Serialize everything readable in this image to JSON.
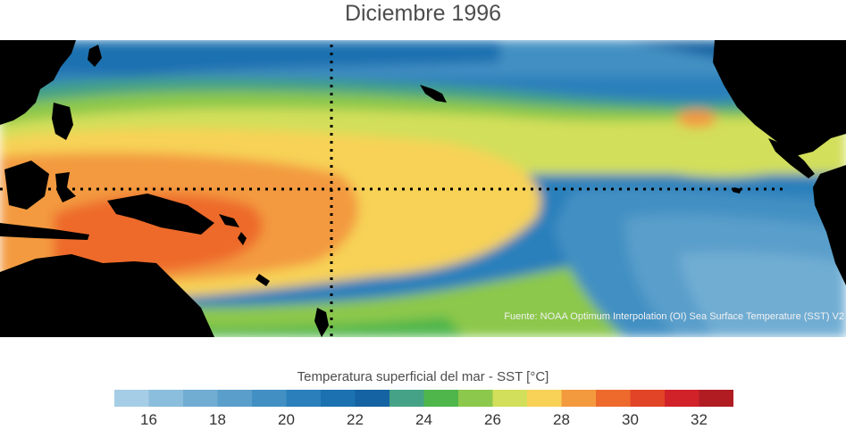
{
  "title": "Diciembre 1996",
  "credit": "Fuente: NOAA Optimum Interpolation (OI) Sea Surface Temperature (SST) V2",
  "colorbar": {
    "title": "Temperatura superficial del mar - SST  [°C]",
    "unit": "°C",
    "bins": [
      {
        "from": 15,
        "to": 16,
        "color": "#a6cde6"
      },
      {
        "from": 16,
        "to": 17,
        "color": "#8bbddc"
      },
      {
        "from": 17,
        "to": 18,
        "color": "#71add3"
      },
      {
        "from": 18,
        "to": 19,
        "color": "#5a9fcb"
      },
      {
        "from": 19,
        "to": 20,
        "color": "#4290c3"
      },
      {
        "from": 20,
        "to": 21,
        "color": "#2b80bb"
      },
      {
        "from": 21,
        "to": 22,
        "color": "#1c71b0"
      },
      {
        "from": 22,
        "to": 23,
        "color": "#1563a2"
      },
      {
        "from": 23,
        "to": 24,
        "color": "#45a286"
      },
      {
        "from": 24,
        "to": 25,
        "color": "#4fb64c"
      },
      {
        "from": 25,
        "to": 26,
        "color": "#8cc84c"
      },
      {
        "from": 26,
        "to": 27,
        "color": "#d2df5a"
      },
      {
        "from": 27,
        "to": 28,
        "color": "#f7d257"
      },
      {
        "from": 28,
        "to": 29,
        "color": "#f39a3f"
      },
      {
        "from": 29,
        "to": 30,
        "color": "#ee6a2c"
      },
      {
        "from": 30,
        "to": 31,
        "color": "#e14426"
      },
      {
        "from": 31,
        "to": 32,
        "color": "#d1222a"
      },
      {
        "from": 32,
        "to": 33,
        "color": "#b11c23"
      }
    ],
    "ticks": [
      "16",
      "18",
      "20",
      "22",
      "24",
      "26",
      "28",
      "30",
      "32"
    ]
  },
  "chart_data": {
    "type": "heatmap",
    "title": "Diciembre 1996",
    "variable": "Temperatura superficial del mar - SST",
    "unit": "°C",
    "range": [
      15,
      33
    ],
    "reference_lines": [
      "Equator (dotted horizontal)",
      "Date line (dotted vertical)"
    ],
    "land_color": "#000000"
  }
}
